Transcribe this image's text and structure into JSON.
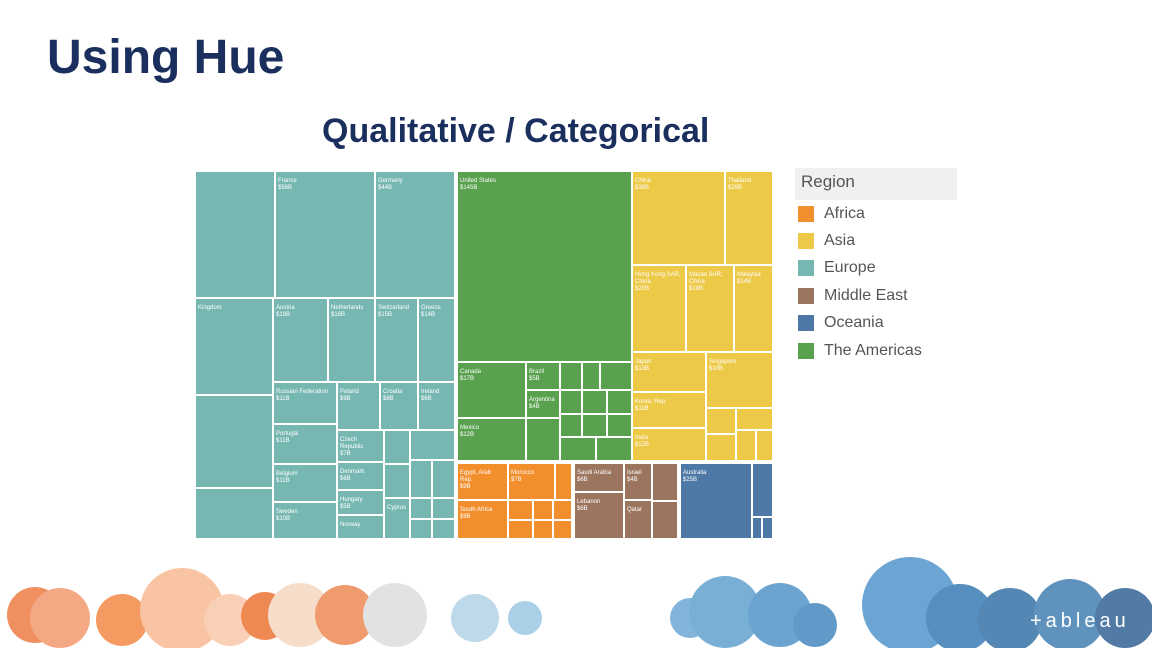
{
  "header": {
    "title": "Using Hue",
    "subtitle": "Qualitative / Categorical"
  },
  "legend": {
    "title": "Region",
    "items": [
      {
        "label": "Africa",
        "color": "#f28e2b"
      },
      {
        "label": "Asia",
        "color": "#edc948"
      },
      {
        "label": "Europe",
        "color": "#76b7b2"
      },
      {
        "label": "Middle East",
        "color": "#9c755f"
      },
      {
        "label": "Oceania",
        "color": "#4e79a7"
      },
      {
        "label": "The Americas",
        "color": "#59a14f"
      }
    ]
  },
  "treemap": {
    "tiles": [
      {
        "label": "France",
        "value": "$56B"
      },
      {
        "label": "Germany",
        "value": "$44B"
      },
      {
        "label": "Kingdom"
      },
      {
        "label": "Austria",
        "value": "$19B"
      },
      {
        "label": "Netherlands",
        "value": "$18B"
      },
      {
        "label": "Switzerland",
        "value": "$15B"
      },
      {
        "label": "Greece",
        "value": "$14B"
      },
      {
        "label": "Russian Federation",
        "value": "$11B"
      },
      {
        "label": "Poland",
        "value": "$9B"
      },
      {
        "label": "Croatia",
        "value": "$8B"
      },
      {
        "label": "Ireland",
        "value": "$6B"
      },
      {
        "label": "Portugal",
        "value": "$11B"
      },
      {
        "label": "Czech Republic",
        "value": "$7B"
      },
      {
        "label": "Belgium",
        "value": "$11B"
      },
      {
        "label": "Denmark",
        "value": "$6B"
      },
      {
        "label": "Hungary",
        "value": "$5B"
      },
      {
        "label": "Sweden",
        "value": "$10B"
      },
      {
        "label": "Norway"
      },
      {
        "label": "Cyprus"
      },
      {
        "label": "United States",
        "value": "$145B"
      },
      {
        "label": "Canada",
        "value": "$17B"
      },
      {
        "label": "Brazil",
        "value": "$5B"
      },
      {
        "label": "Argentina",
        "value": "$4B"
      },
      {
        "label": "Mexico",
        "value": "$12B"
      },
      {
        "label": "China",
        "value": "$38B"
      },
      {
        "label": "Thailand",
        "value": "$29B"
      },
      {
        "label": "Hong Kong SAR, China",
        "value": "$20B"
      },
      {
        "label": "Macao SAR, China",
        "value": "$18B"
      },
      {
        "label": "Malaysia",
        "value": "$14B"
      },
      {
        "label": "Japan",
        "value": "$13B"
      },
      {
        "label": "Singapore",
        "value": "$10B"
      },
      {
        "label": "Korea, Rep.",
        "value": "$11B"
      },
      {
        "label": "India",
        "value": "$12B"
      },
      {
        "label": "Egypt, Arab Rep.",
        "value": "$9B"
      },
      {
        "label": "Morocco",
        "value": "$7B"
      },
      {
        "label": "South Africa",
        "value": "$9B"
      },
      {
        "label": "Saudi Arabia",
        "value": "$6B"
      },
      {
        "label": "Israel",
        "value": "$4B"
      },
      {
        "label": "Lebanon",
        "value": "$6B"
      },
      {
        "label": "Qatar"
      },
      {
        "label": "Australia",
        "value": "$25B"
      }
    ]
  },
  "logo": "+ableau"
}
